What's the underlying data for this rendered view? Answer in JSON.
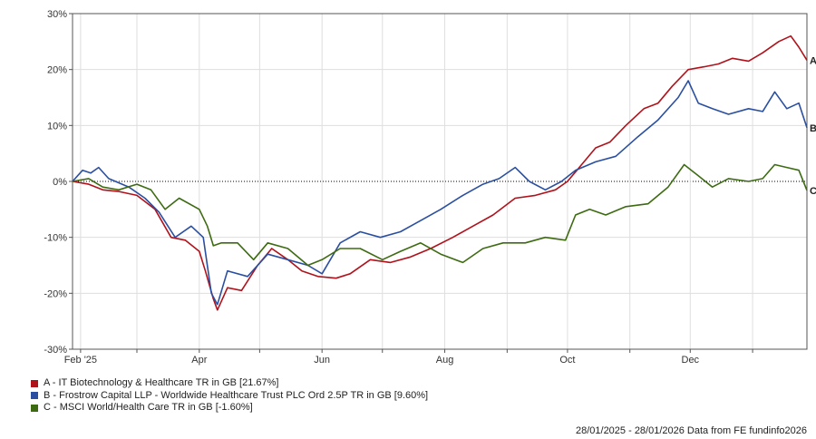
{
  "chart_data": {
    "type": "line",
    "y_unit": "%",
    "ylim": [
      -30,
      30
    ],
    "yticks": [
      "30%",
      "20%",
      "10%",
      "0%",
      "-10%",
      "-20%",
      "-30%"
    ],
    "x_range": [
      "2025-01-28",
      "2026-01-28"
    ],
    "xticks": [
      "Feb '25",
      "Apr",
      "Jun",
      "Aug",
      "Oct",
      "Dec"
    ],
    "grid": true,
    "zero_line": "dotted",
    "legend_placement": "bottom-left",
    "series": [
      {
        "name": "A - IT Biotechnology & Healthcare TR in GB [21.67%]",
        "end_label": "A",
        "color": "#b0121b",
        "points": [
          [
            "2025-01-28",
            0
          ],
          [
            "2025-02-05",
            -0.5
          ],
          [
            "2025-02-12",
            -1.5
          ],
          [
            "2025-02-20",
            -1.8
          ],
          [
            "2025-03-01",
            -2.5
          ],
          [
            "2025-03-10",
            -5
          ],
          [
            "2025-03-18",
            -10
          ],
          [
            "2025-03-25",
            -10.5
          ],
          [
            "2025-04-01",
            -12.5
          ],
          [
            "2025-04-04",
            -16
          ],
          [
            "2025-04-08",
            -21
          ],
          [
            "2025-04-10",
            -23
          ],
          [
            "2025-04-15",
            -19
          ],
          [
            "2025-04-22",
            -19.5
          ],
          [
            "2025-04-30",
            -15
          ],
          [
            "2025-05-07",
            -12
          ],
          [
            "2025-05-15",
            -14
          ],
          [
            "2025-05-22",
            -16
          ],
          [
            "2025-05-30",
            -17
          ],
          [
            "2025-06-08",
            -17.3
          ],
          [
            "2025-06-15",
            -16.5
          ],
          [
            "2025-06-25",
            -14
          ],
          [
            "2025-07-05",
            -14.5
          ],
          [
            "2025-07-15",
            -13.5
          ],
          [
            "2025-07-25",
            -12
          ],
          [
            "2025-08-05",
            -10
          ],
          [
            "2025-08-15",
            -8
          ],
          [
            "2025-08-25",
            -6
          ],
          [
            "2025-09-05",
            -3
          ],
          [
            "2025-09-15",
            -2.5
          ],
          [
            "2025-09-25",
            -1.5
          ],
          [
            "2025-10-01",
            0
          ],
          [
            "2025-10-08",
            3
          ],
          [
            "2025-10-15",
            6
          ],
          [
            "2025-10-22",
            7
          ],
          [
            "2025-10-30",
            10
          ],
          [
            "2025-11-08",
            13
          ],
          [
            "2025-11-15",
            14
          ],
          [
            "2025-11-22",
            17
          ],
          [
            "2025-11-30",
            20
          ],
          [
            "2025-12-08",
            20.5
          ],
          [
            "2025-12-15",
            21
          ],
          [
            "2025-12-22",
            22
          ],
          [
            "2025-12-30",
            21.5
          ],
          [
            "2026-01-06",
            23
          ],
          [
            "2026-01-14",
            25
          ],
          [
            "2026-01-20",
            26
          ],
          [
            "2026-01-24",
            24
          ],
          [
            "2026-01-28",
            21.67
          ]
        ]
      },
      {
        "name": "B - Frostrow Capital LLP - Worldwide Healthcare Trust PLC Ord 2.5P TR in GB [9.60%]",
        "end_label": "B",
        "color": "#2a4fa0",
        "points": [
          [
            "2025-01-28",
            0
          ],
          [
            "2025-02-02",
            2
          ],
          [
            "2025-02-06",
            1.5
          ],
          [
            "2025-02-10",
            2.5
          ],
          [
            "2025-02-15",
            0.5
          ],
          [
            "2025-02-25",
            -1
          ],
          [
            "2025-03-05",
            -3
          ],
          [
            "2025-03-12",
            -5.5
          ],
          [
            "2025-03-20",
            -10
          ],
          [
            "2025-03-28",
            -8
          ],
          [
            "2025-04-03",
            -10
          ],
          [
            "2025-04-07",
            -20
          ],
          [
            "2025-04-10",
            -22
          ],
          [
            "2025-04-15",
            -16
          ],
          [
            "2025-04-25",
            -17
          ],
          [
            "2025-05-05",
            -13
          ],
          [
            "2025-05-15",
            -14
          ],
          [
            "2025-05-25",
            -15
          ],
          [
            "2025-06-01",
            -16.5
          ],
          [
            "2025-06-10",
            -11
          ],
          [
            "2025-06-20",
            -9
          ],
          [
            "2025-06-30",
            -10
          ],
          [
            "2025-07-10",
            -9
          ],
          [
            "2025-07-20",
            -7
          ],
          [
            "2025-07-30",
            -5
          ],
          [
            "2025-08-10",
            -2.5
          ],
          [
            "2025-08-20",
            -0.5
          ],
          [
            "2025-08-28",
            0.5
          ],
          [
            "2025-09-05",
            2.5
          ],
          [
            "2025-09-12",
            0
          ],
          [
            "2025-09-20",
            -1.5
          ],
          [
            "2025-09-28",
            0
          ],
          [
            "2025-10-05",
            2
          ],
          [
            "2025-10-15",
            3.5
          ],
          [
            "2025-10-25",
            4.5
          ],
          [
            "2025-11-05",
            8
          ],
          [
            "2025-11-15",
            11
          ],
          [
            "2025-11-25",
            15
          ],
          [
            "2025-11-30",
            18
          ],
          [
            "2025-12-05",
            14
          ],
          [
            "2025-12-12",
            13
          ],
          [
            "2025-12-20",
            12
          ],
          [
            "2025-12-30",
            13
          ],
          [
            "2026-01-06",
            12.5
          ],
          [
            "2026-01-12",
            16
          ],
          [
            "2026-01-18",
            13
          ],
          [
            "2026-01-24",
            14
          ],
          [
            "2026-01-28",
            9.6
          ]
        ]
      },
      {
        "name": "C - MSCI World/Health Care TR in GB [-1.60%]",
        "end_label": "C",
        "color": "#3d6b12",
        "points": [
          [
            "2025-01-28",
            0
          ],
          [
            "2025-02-05",
            0.5
          ],
          [
            "2025-02-12",
            -1
          ],
          [
            "2025-02-20",
            -1.5
          ],
          [
            "2025-03-01",
            -0.5
          ],
          [
            "2025-03-08",
            -1.5
          ],
          [
            "2025-03-15",
            -5
          ],
          [
            "2025-03-22",
            -3
          ],
          [
            "2025-04-01",
            -5
          ],
          [
            "2025-04-05",
            -8
          ],
          [
            "2025-04-08",
            -11.5
          ],
          [
            "2025-04-12",
            -11
          ],
          [
            "2025-04-20",
            -11
          ],
          [
            "2025-04-28",
            -14
          ],
          [
            "2025-05-05",
            -11
          ],
          [
            "2025-05-15",
            -12
          ],
          [
            "2025-05-25",
            -15
          ],
          [
            "2025-06-01",
            -14
          ],
          [
            "2025-06-10",
            -12
          ],
          [
            "2025-06-20",
            -12
          ],
          [
            "2025-07-01",
            -14
          ],
          [
            "2025-07-10",
            -12.5
          ],
          [
            "2025-07-20",
            -11
          ],
          [
            "2025-07-30",
            -13
          ],
          [
            "2025-08-10",
            -14.5
          ],
          [
            "2025-08-20",
            -12
          ],
          [
            "2025-08-30",
            -11
          ],
          [
            "2025-09-10",
            -11
          ],
          [
            "2025-09-20",
            -10
          ],
          [
            "2025-09-30",
            -10.5
          ],
          [
            "2025-10-05",
            -6
          ],
          [
            "2025-10-12",
            -5
          ],
          [
            "2025-10-20",
            -6
          ],
          [
            "2025-10-30",
            -4.5
          ],
          [
            "2025-11-10",
            -4
          ],
          [
            "2025-11-20",
            -1
          ],
          [
            "2025-11-28",
            3
          ],
          [
            "2025-12-05",
            1
          ],
          [
            "2025-12-12",
            -1
          ],
          [
            "2025-12-20",
            0.5
          ],
          [
            "2025-12-30",
            0
          ],
          [
            "2026-01-06",
            0.5
          ],
          [
            "2026-01-12",
            3
          ],
          [
            "2026-01-18",
            2.5
          ],
          [
            "2026-01-24",
            2
          ],
          [
            "2026-01-28",
            -1.6
          ]
        ]
      }
    ]
  },
  "footer": "28/01/2025 - 28/01/2026 Data from FE fundinfo2026"
}
